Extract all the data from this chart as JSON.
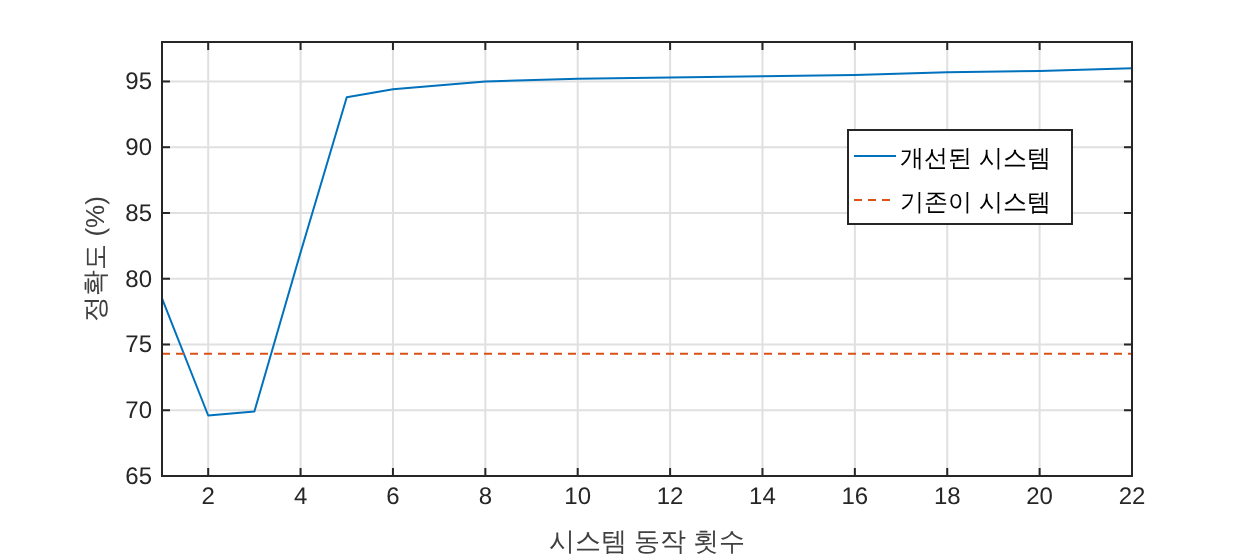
{
  "chart_data": {
    "type": "line",
    "xlabel": "시스템 동작 횟수",
    "ylabel": "정확도 (%)",
    "x": [
      1,
      2,
      3,
      4,
      5,
      6,
      8,
      10,
      12,
      14,
      16,
      18,
      20,
      22
    ],
    "series": [
      {
        "name": "개선된 시스템",
        "color": "#0072bd",
        "values": [
          78.5,
          69.6,
          69.9,
          82,
          93.8,
          94.4,
          95,
          95.2,
          95.3,
          95.4,
          95.5,
          95.7,
          95.8,
          96
        ]
      },
      {
        "name": "기존이 시스템",
        "color": "#d95319",
        "line_style": "dashed",
        "x": [
          1,
          22
        ],
        "values": [
          74.3,
          74.3
        ]
      }
    ],
    "xlim": [
      1,
      22
    ],
    "xticks": [
      2,
      4,
      6,
      8,
      10,
      12,
      14,
      16,
      18,
      20,
      22
    ],
    "ylim": [
      65,
      98
    ],
    "yticks": [
      65,
      70,
      75,
      80,
      85,
      90,
      95
    ],
    "grid": true,
    "legend": "right"
  }
}
